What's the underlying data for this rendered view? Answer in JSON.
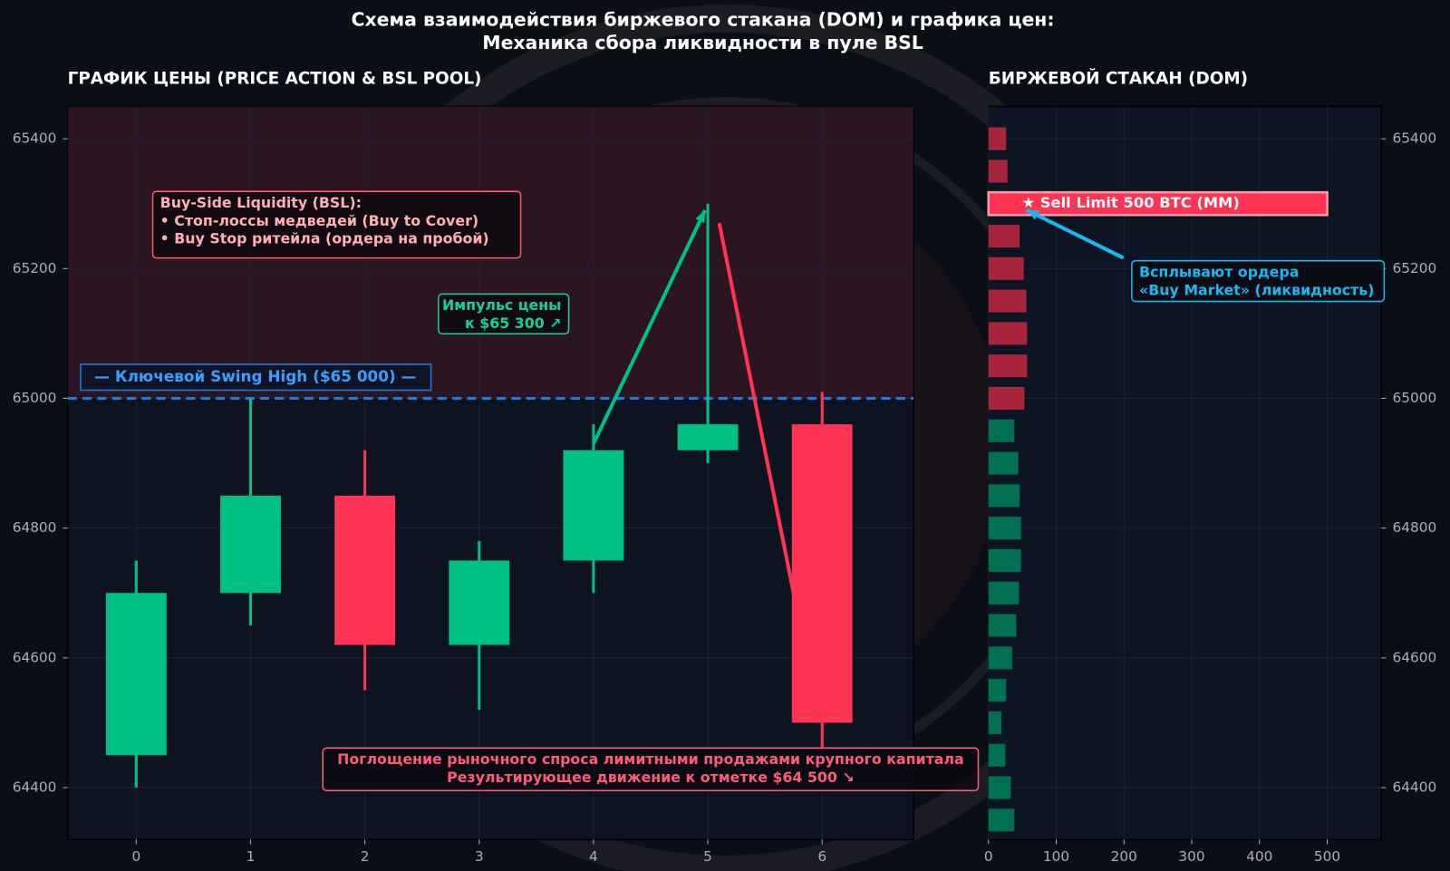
{
  "title": [
    "Схема взаимодействия биржевого стакана (DOM) и графика цен:",
    "Механика сбора ликвидности в пуле BSL"
  ],
  "chart_data": [
    {
      "type": "candlestick",
      "title": "ГРАФИК ЦЕНЫ (PRICE ACTION & BSL POOL)",
      "x": [
        0,
        1,
        2,
        3,
        4,
        5,
        6
      ],
      "open": [
        64450,
        64700,
        64850,
        64620,
        64750,
        64920,
        64960
      ],
      "high": [
        64750,
        65000,
        64920,
        64780,
        64960,
        65300,
        65010
      ],
      "low": [
        64400,
        64650,
        64550,
        64520,
        64700,
        64900,
        64460
      ],
      "close": [
        64700,
        64850,
        64620,
        64750,
        64920,
        64960,
        64500
      ],
      "up_color": "#00c084",
      "down_color": "#ff3352",
      "xlim": [
        -0.6,
        6.8
      ],
      "ylim": [
        64320,
        65450
      ],
      "xticks": [
        0,
        1,
        2,
        3,
        4,
        5,
        6
      ],
      "yticks": [
        64400,
        64600,
        64800,
        65000,
        65200,
        65400
      ],
      "grid": true,
      "hline": {
        "value": 65000,
        "color": "#1e7be0",
        "label": "— Ключевой Swing High ($65 000) —"
      },
      "annotations": [
        {
          "lines": [
            "Buy-Side Liquidity (BSL):",
            "• Стоп-лоссы медведей (Buy to Cover)",
            "• Buy Stop ритейла (ордера на пробой)"
          ],
          "color": "#ffb0b0",
          "border": "#ff5566"
        },
        {
          "lines": [
            "Импульс цены",
            "к $65 300 ↗"
          ],
          "color": "#14d196",
          "border": "#14d196"
        },
        {
          "lines": [
            "Поглощение рыночного спроса лимитными продажами крупного капитала",
            "Результирующее движение к отметке $64 500 ↘"
          ],
          "color": "#ff5a78",
          "border": "#ff5a78"
        }
      ]
    },
    {
      "type": "barh",
      "title": "БИРЖЕВОЙ СТАКАН (DOM)",
      "series": [
        {
          "color": "#c4283f",
          "y": [
            65400,
            65350,
            65300,
            65250,
            65200,
            65150,
            65100,
            65050,
            65000
          ],
          "values": [
            26,
            28,
            500,
            46,
            52,
            56,
            57,
            57,
            53
          ]
        },
        {
          "color": "#00805a",
          "y": [
            64950,
            64900,
            64850,
            64800,
            64750,
            64700,
            64650,
            64600,
            64550,
            64500,
            64450,
            64400,
            64350
          ],
          "values": [
            38,
            44,
            46,
            48,
            48,
            45,
            41,
            35,
            26,
            19,
            25,
            33,
            38
          ]
        }
      ],
      "highlight": {
        "color": "#ff3352",
        "label": "★ Sell Limit 500 BTC (MM)"
      },
      "xlim": [
        0,
        580
      ],
      "ylim": [
        64320,
        65450
      ],
      "xticks": [
        0,
        100,
        200,
        300,
        400,
        500
      ],
      "yticks": [
        64400,
        64600,
        64800,
        65000,
        65200,
        65400
      ],
      "grid": true,
      "annotations": [
        {
          "lines": [
            "Всплывают ордера",
            "«Buy Market» (ликвидность)"
          ],
          "color": "#1ab8f0",
          "border": "#1ab8f0"
        }
      ]
    }
  ]
}
